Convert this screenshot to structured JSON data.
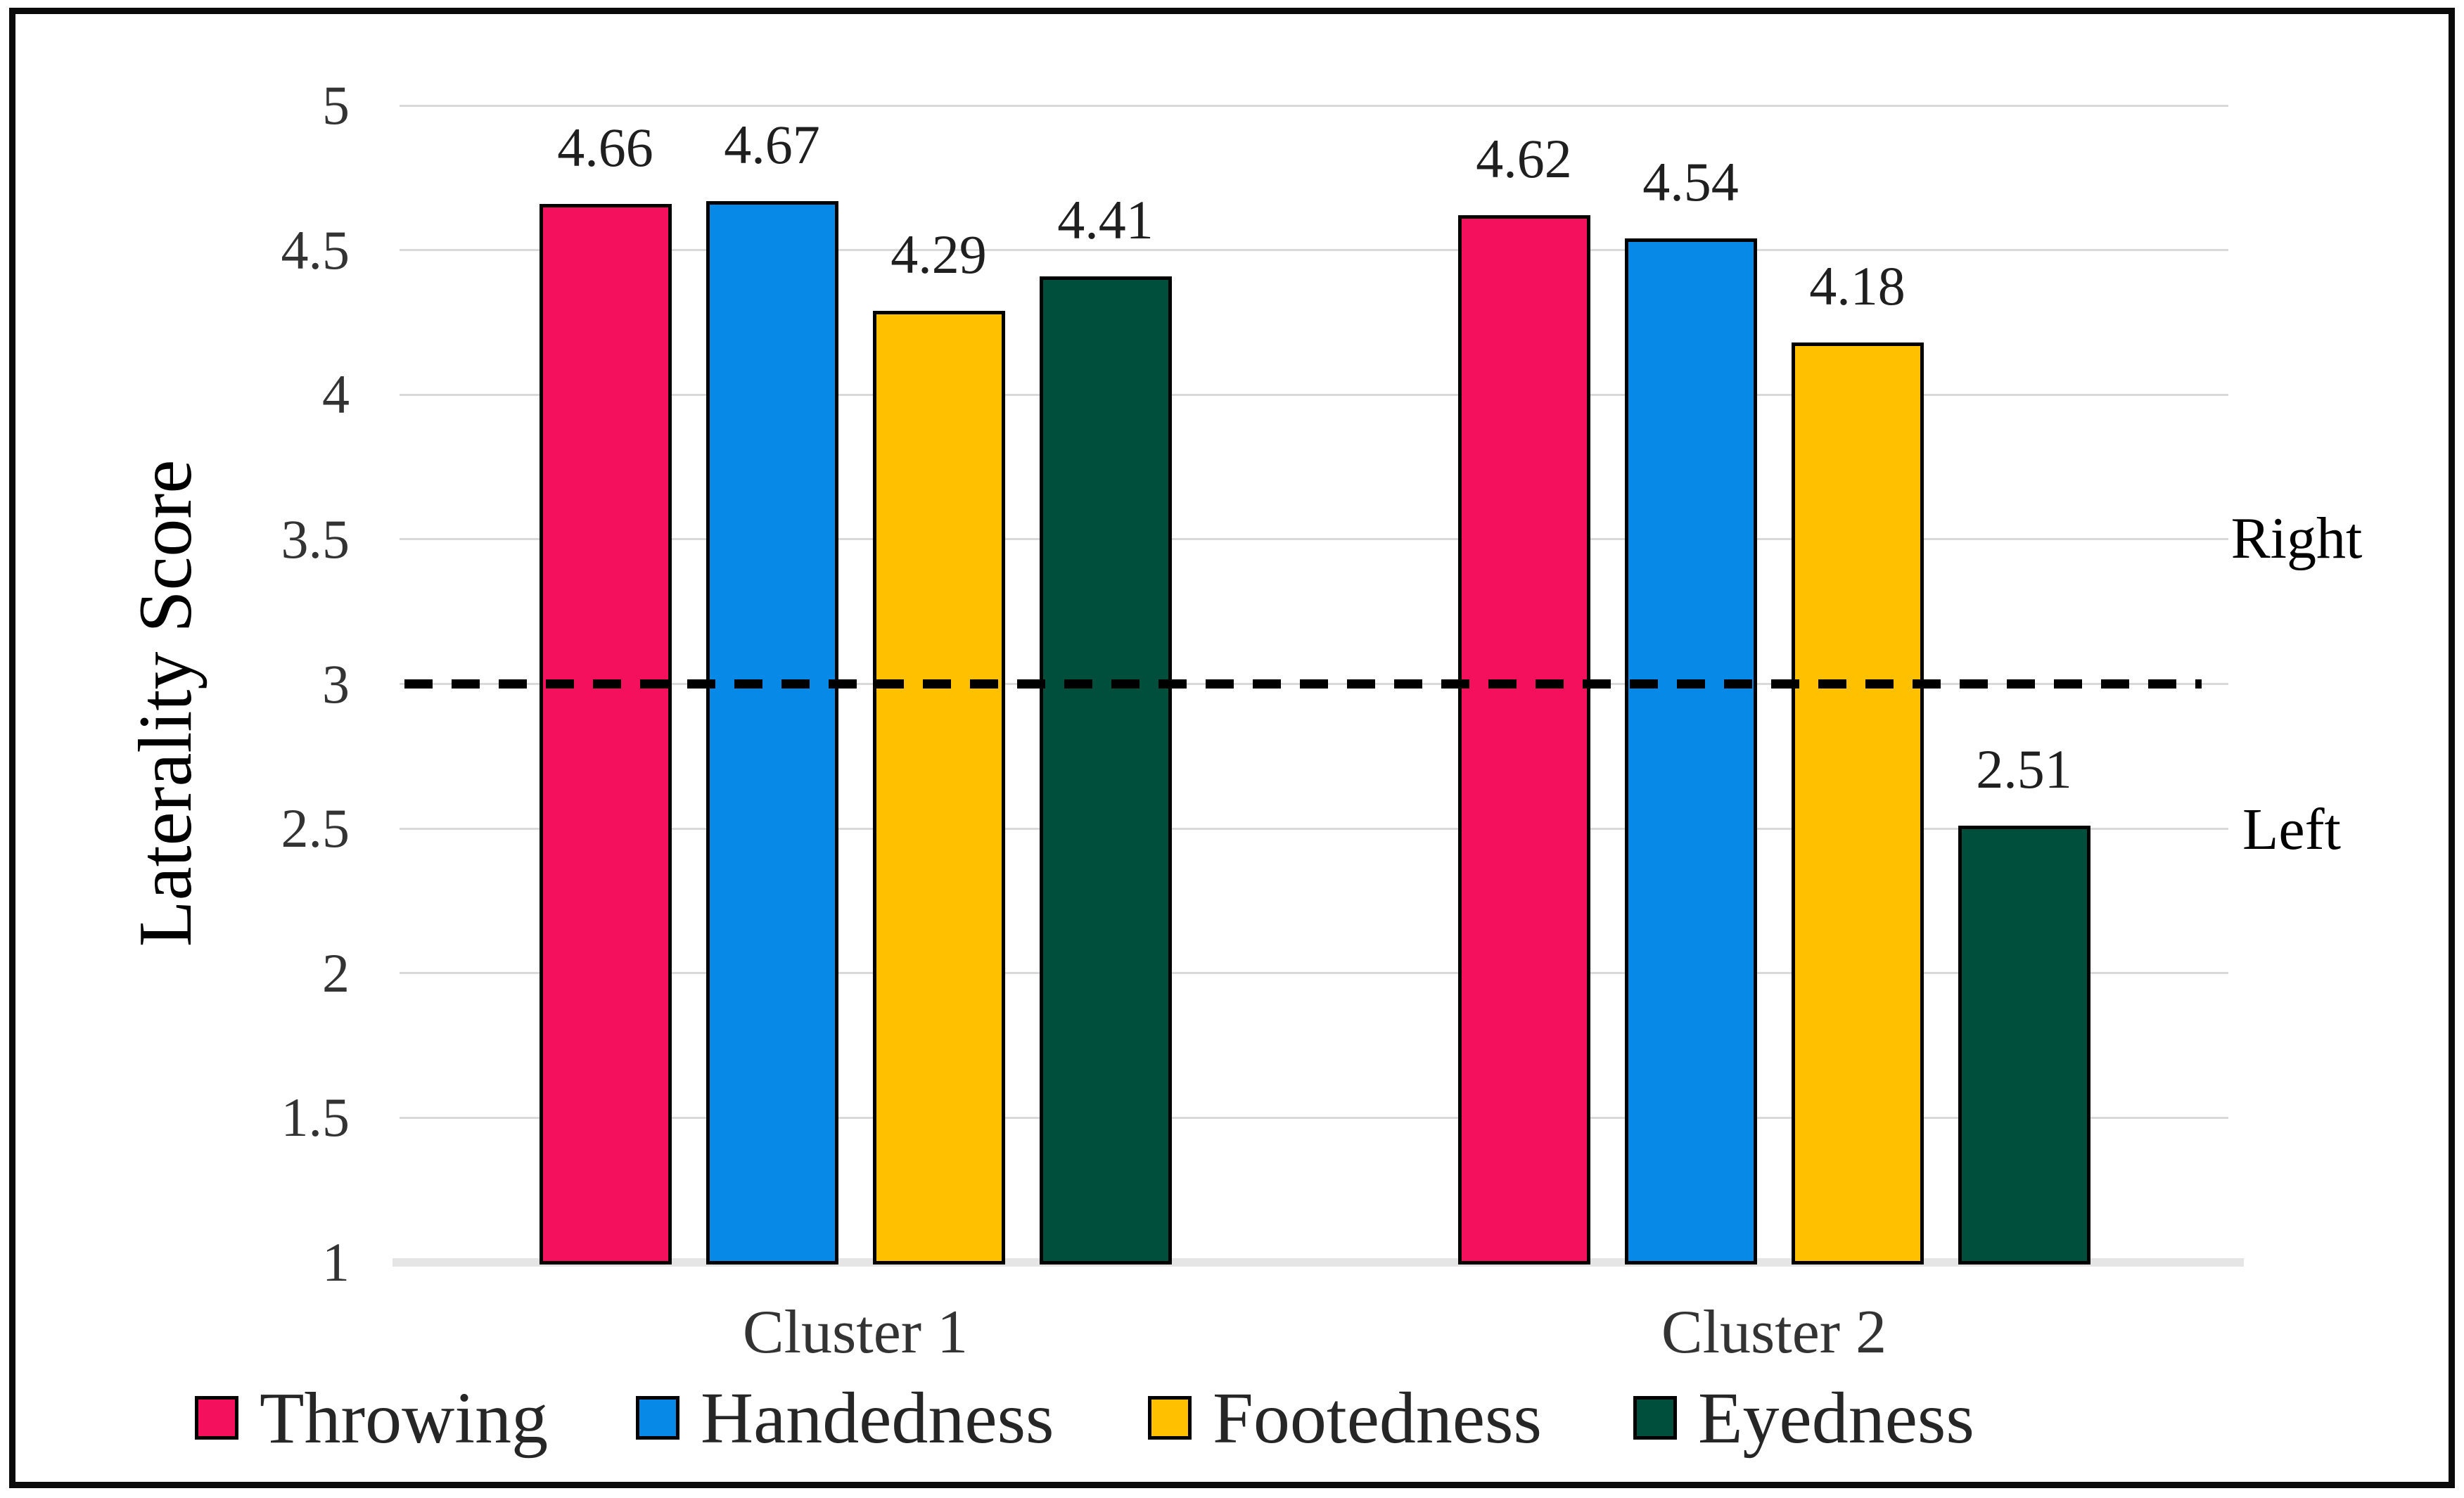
{
  "chart_data": {
    "type": "bar",
    "title": "",
    "categories": [
      "Cluster 1",
      "Cluster 2"
    ],
    "series": [
      {
        "name": "Throwing",
        "color": "#F5105E",
        "values": [
          4.66,
          4.62
        ],
        "labels": [
          "4.66",
          "4.62"
        ]
      },
      {
        "name": "Handedness",
        "color": "#0789E8",
        "values": [
          4.67,
          4.54
        ],
        "labels": [
          "4.67",
          "4.54"
        ]
      },
      {
        "name": "Footedness",
        "color": "#FFC000",
        "values": [
          4.29,
          4.18
        ],
        "labels": [
          "4.29",
          "4.18"
        ]
      },
      {
        "name": "Eyedness",
        "color": "#004E3C",
        "values": [
          4.41,
          2.51
        ],
        "labels": [
          "4.41",
          "2.51"
        ]
      }
    ],
    "ylabel": "Laterality Score",
    "xlabel": "",
    "ylim": [
      1,
      5
    ],
    "yticks": [
      1,
      1.5,
      2,
      2.5,
      3,
      3.5,
      4,
      4.5,
      5
    ],
    "ytick_labels": [
      "1",
      "1.5",
      "2",
      "2.5",
      "3",
      "3.5",
      "4",
      "4.5",
      "5"
    ],
    "grid": true,
    "legend_position": "bottom",
    "data_labels": true,
    "reference_line": {
      "value": 3,
      "style": "dashed",
      "color": "#000000"
    },
    "annotations": {
      "above_line": "Right",
      "below_line": "Left"
    }
  }
}
